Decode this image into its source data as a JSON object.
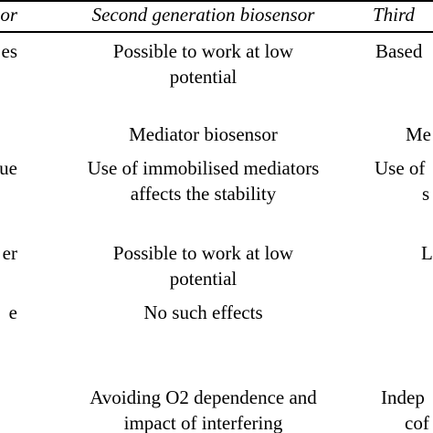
{
  "header": {
    "col1": "sensor",
    "col2": "Second generation biosensor",
    "col3": "Third"
  },
  "rows": [
    {
      "col1": "es",
      "col2_lines": [
        "Possible to work at low",
        "potential"
      ],
      "col3_lines": [
        "Based"
      ]
    },
    {
      "col1": "",
      "col2_lines": [
        "Mediator biosensor"
      ],
      "col3_lines": [
        "Me"
      ]
    },
    {
      "col1": "ue",
      "col2_lines": [
        "Use of immobilised mediators",
        "affects the stability"
      ],
      "col3_lines": [
        "Use of",
        "s"
      ]
    },
    {
      "col1": "er",
      "col2_lines": [
        "Possible to work at low",
        "potential"
      ],
      "col3_lines": [
        "L"
      ]
    },
    {
      "col1": "e",
      "col2_lines": [
        "No such effects"
      ],
      "col3_lines": []
    },
    {
      "col1": "",
      "col2_lines": [
        "Avoiding O2 dependence and",
        "impact of interfering"
      ],
      "col3_lines": [
        "Indep",
        "cof"
      ]
    }
  ]
}
